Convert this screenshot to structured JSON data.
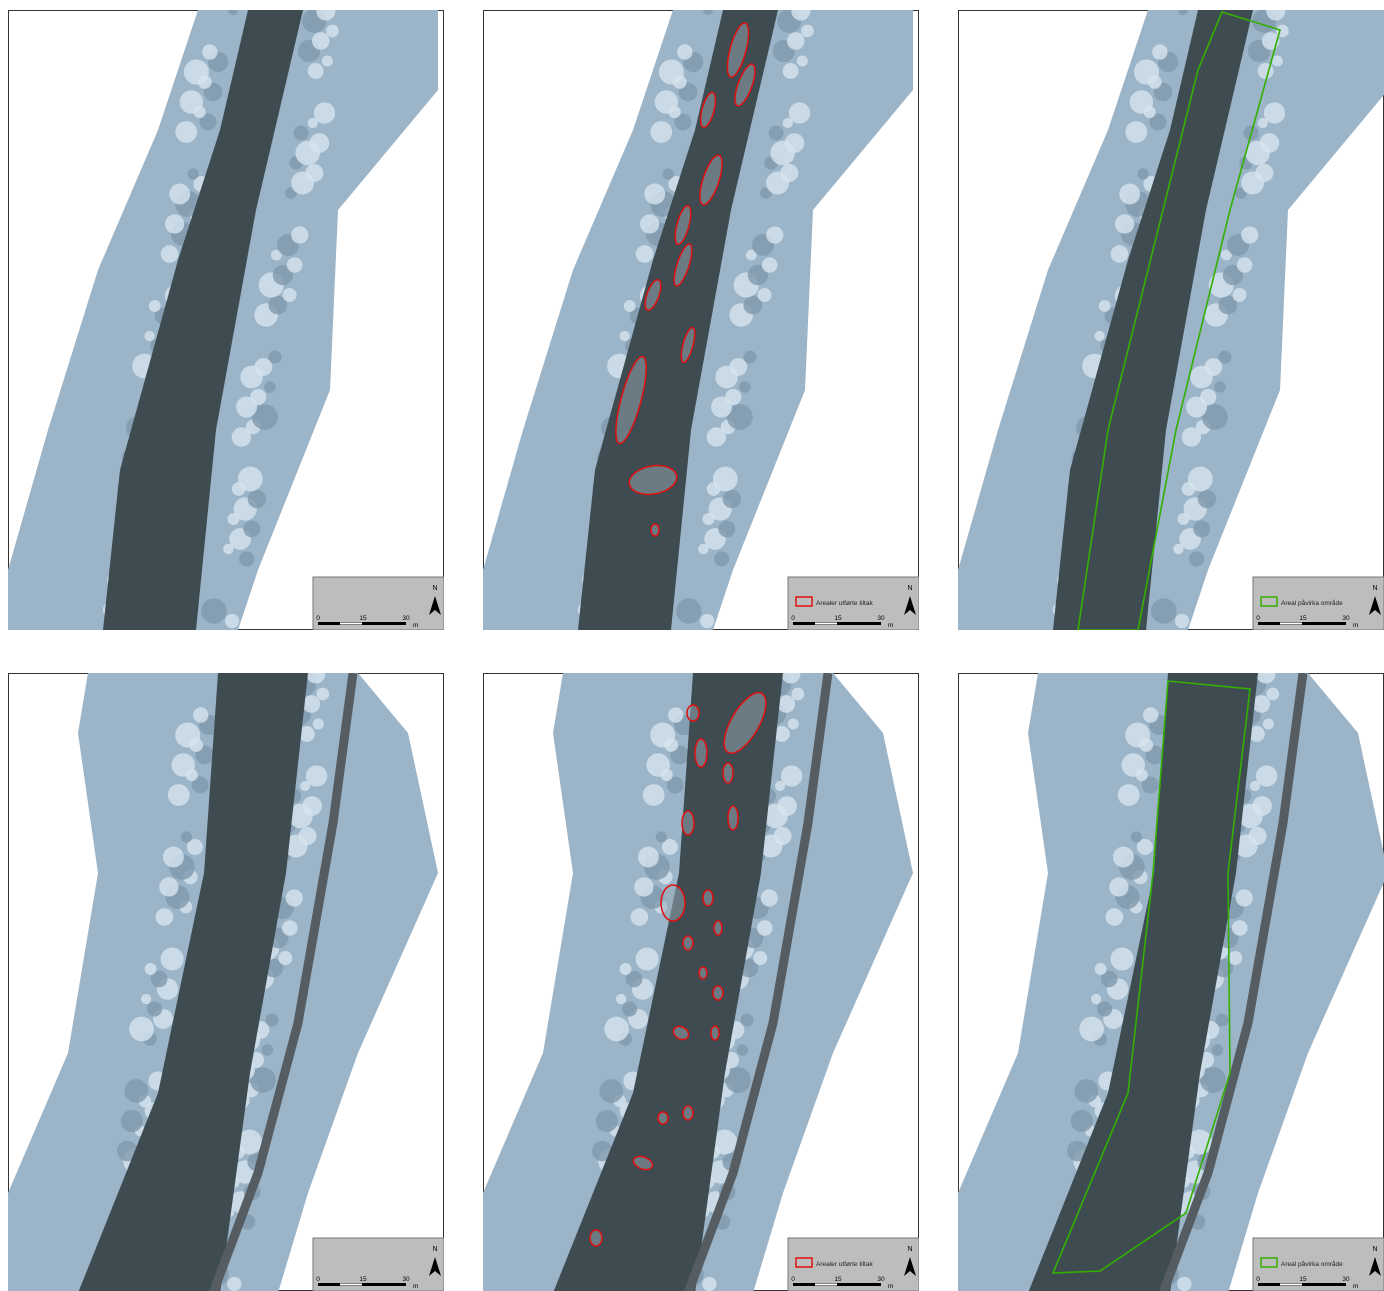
{
  "panels": [
    {
      "kind": "plain",
      "row": "top",
      "north": "N",
      "scale": {
        "labels": [
          "0",
          "15",
          "30"
        ],
        "unit": "m"
      }
    },
    {
      "kind": "red",
      "row": "top",
      "legend": "Arealer utførte tiltak",
      "north": "N",
      "scale": {
        "labels": [
          "0",
          "15",
          "30"
        ],
        "unit": "m"
      }
    },
    {
      "kind": "green",
      "row": "top",
      "legend": "Areal påvirka område",
      "north": "N",
      "scale": {
        "labels": [
          "0",
          "15",
          "30"
        ],
        "unit": "m"
      }
    },
    {
      "kind": "plain",
      "row": "bottom",
      "north": "N",
      "scale": {
        "labels": [
          "0",
          "15",
          "30"
        ],
        "unit": "m"
      }
    },
    {
      "kind": "red",
      "row": "bottom",
      "legend": "Arealer utførte tiltak",
      "north": "N",
      "scale": {
        "labels": [
          "0",
          "15",
          "30"
        ],
        "unit": "m"
      }
    },
    {
      "kind": "green",
      "row": "bottom",
      "legend": "Areal påvirka område",
      "north": "N",
      "scale": {
        "labels": [
          "0",
          "15",
          "30"
        ],
        "unit": "m"
      }
    }
  ]
}
